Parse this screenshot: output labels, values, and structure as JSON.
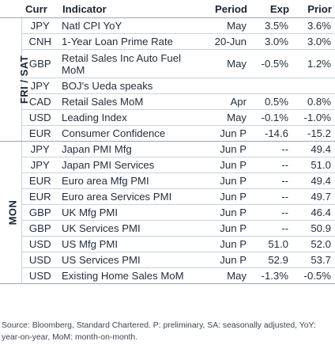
{
  "headers": {
    "curr": "Curr",
    "indicator": "Indicator",
    "period": "Period",
    "exp": "Exp",
    "prior": "Prior"
  },
  "groups": {
    "fri_sat": "FRI / SAT",
    "mon": "MON"
  },
  "rows": [
    {
      "curr": "JPY",
      "indicator": "Natl CPI YoY",
      "period": "May",
      "exp": "3.5%",
      "prior": "3.6%"
    },
    {
      "curr": "CNH",
      "indicator": "1-Year Loan Prime Rate",
      "period": "20-Jun",
      "exp": "3.0%",
      "prior": "3.0%"
    },
    {
      "curr": "GBP",
      "indicator": "Retail Sales Inc Auto Fuel MoM",
      "period": "May",
      "exp": "-0.5%",
      "prior": "1.2%"
    },
    {
      "curr": "JPY",
      "indicator": "BOJ's Ueda speaks",
      "period": "",
      "exp": "",
      "prior": ""
    },
    {
      "curr": "CAD",
      "indicator": "Retail Sales MoM",
      "period": "Apr",
      "exp": "0.5%",
      "prior": "0.8%"
    },
    {
      "curr": "USD",
      "indicator": "Leading Index",
      "period": "May",
      "exp": "-0.1%",
      "prior": "-1.0%"
    },
    {
      "curr": "EUR",
      "indicator": "Consumer Confidence",
      "period": "Jun P",
      "exp": "-14.6",
      "prior": "-15.2"
    },
    {
      "curr": "JPY",
      "indicator": "Japan PMI Mfg",
      "period": "Jun P",
      "exp": "--",
      "prior": "49.4"
    },
    {
      "curr": "JPY",
      "indicator": "Japan PMI Services",
      "period": "Jun P",
      "exp": "--",
      "prior": "51.0"
    },
    {
      "curr": "EUR",
      "indicator": "Euro area Mfg PMI",
      "period": "Jun P",
      "exp": "--",
      "prior": "49.4"
    },
    {
      "curr": "EUR",
      "indicator": "Euro area Services PMI",
      "period": "Jun P",
      "exp": "--",
      "prior": "49.7"
    },
    {
      "curr": "GBP",
      "indicator": "UK Mfg PMI",
      "period": "Jun P",
      "exp": "--",
      "prior": "46.4"
    },
    {
      "curr": "GBP",
      "indicator": "UK Services PMI",
      "period": "Jun P",
      "exp": "--",
      "prior": "50.9"
    },
    {
      "curr": "USD",
      "indicator": "US Mfg PMI",
      "period": "Jun P",
      "exp": "51.0",
      "prior": "52.0"
    },
    {
      "curr": "USD",
      "indicator": "US Services PMI",
      "period": "Jun P",
      "exp": "52.9",
      "prior": "53.7"
    },
    {
      "curr": "USD",
      "indicator": "Existing Home Sales MoM",
      "period": "May",
      "exp": "-1.3%",
      "prior": "-0.5%"
    }
  ],
  "source": "Source: Bloomberg, Standard Chartered. P: preliminary, SA: seasonally adjusted, YoY: year-on-year, MoM: month-on-month."
}
